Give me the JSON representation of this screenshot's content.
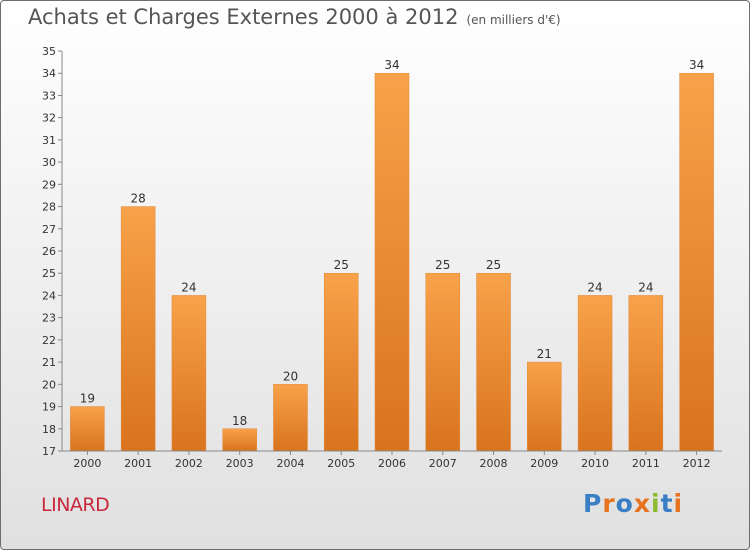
{
  "header": {
    "title": "Achats et Charges Externes 2000 à 2012",
    "unit": "(en milliers d'€)"
  },
  "footer": {
    "commune": "LINARD",
    "logo": "Proxiti"
  },
  "colors": {
    "bar_top": "#f7a24a",
    "bar_bottom": "#d9731e",
    "commune_text": "#c8283c",
    "logo_letters": [
      "#3a7fc4",
      "#e8731e",
      "#3a7fc4",
      "#e8731e",
      "#8dbb2f",
      "#3a7fc4",
      "#e8731e"
    ]
  },
  "chart_data": {
    "type": "bar",
    "categories": [
      "2000",
      "2001",
      "2002",
      "2003",
      "2004",
      "2005",
      "2006",
      "2007",
      "2008",
      "2009",
      "2010",
      "2011",
      "2012"
    ],
    "values": [
      19,
      28,
      24,
      18,
      20,
      25,
      34,
      25,
      25,
      21,
      24,
      24,
      34
    ],
    "ylim": [
      17,
      35
    ],
    "yticks": [
      17,
      18,
      19,
      20,
      21,
      22,
      23,
      24,
      25,
      26,
      27,
      28,
      29,
      30,
      31,
      32,
      33,
      34,
      35
    ],
    "grid": false,
    "data_labels": true
  }
}
